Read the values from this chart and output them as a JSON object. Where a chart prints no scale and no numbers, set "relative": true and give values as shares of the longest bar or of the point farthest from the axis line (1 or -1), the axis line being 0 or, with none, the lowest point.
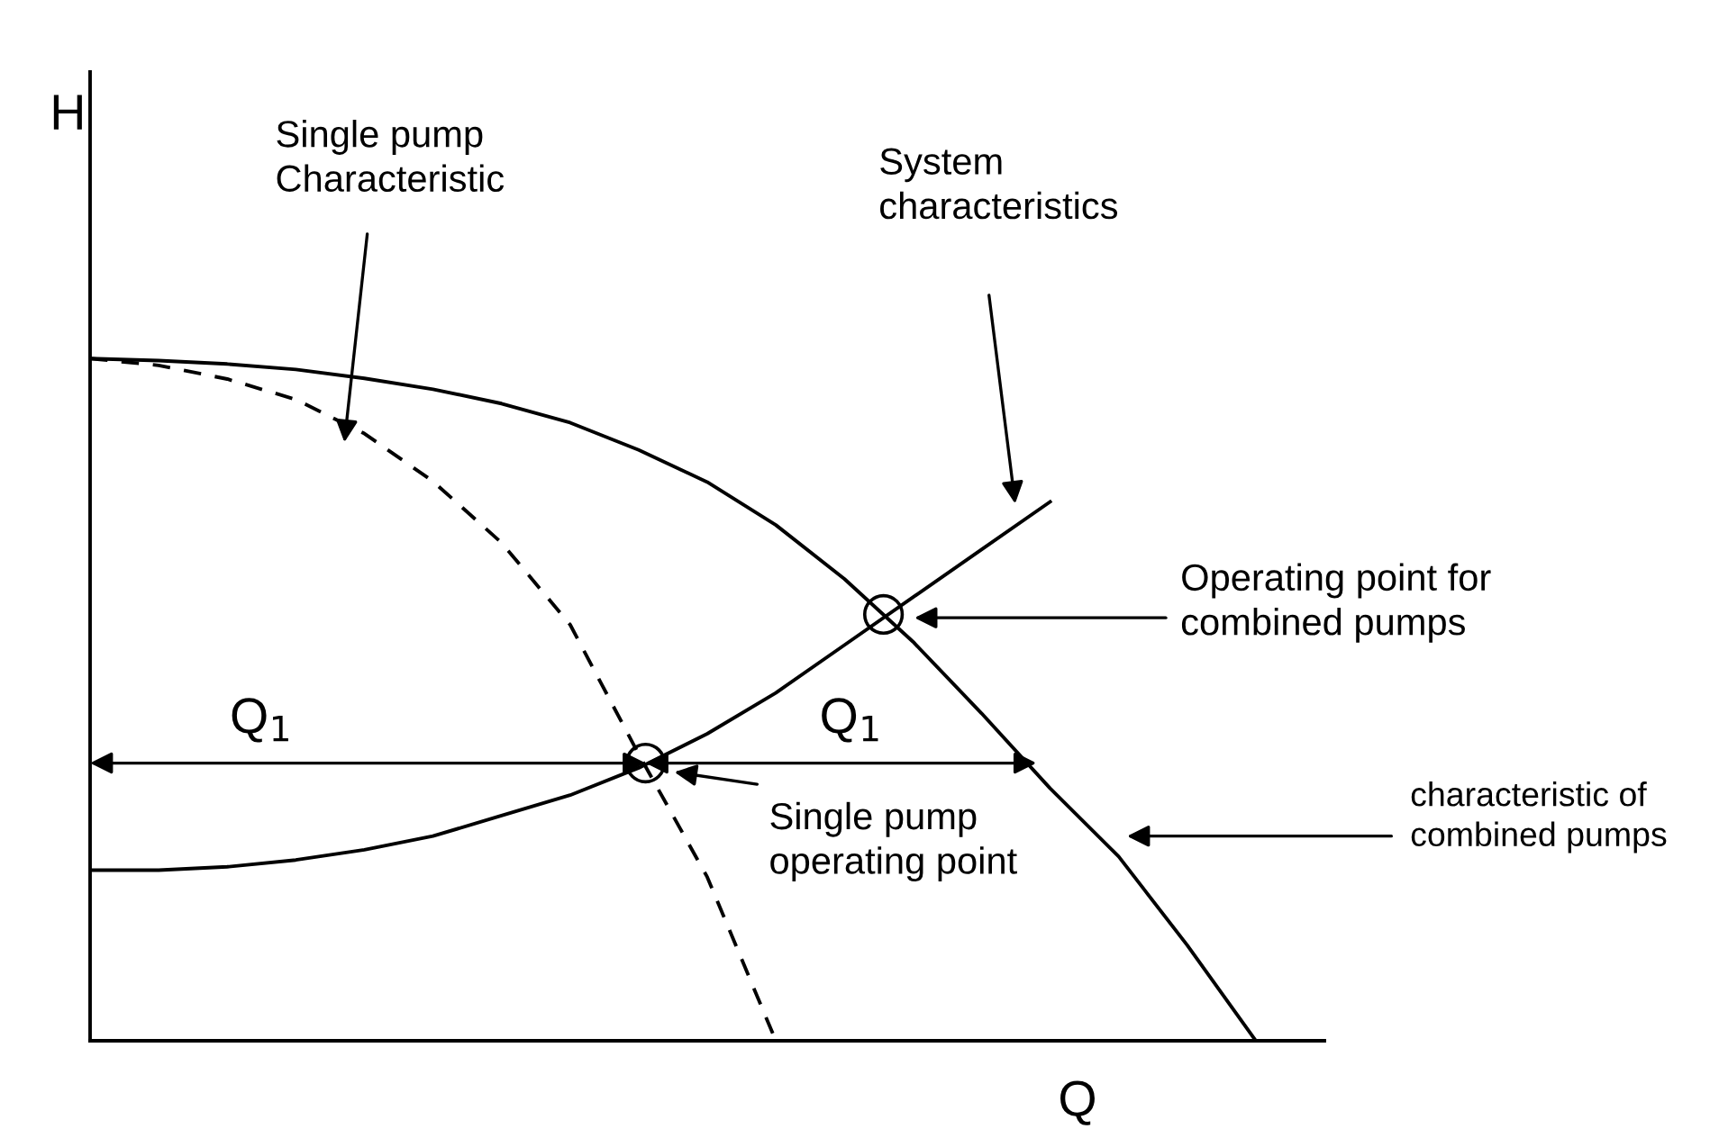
{
  "chart_data": {
    "type": "line",
    "relative": true,
    "xlabel": "Q",
    "ylabel": "H",
    "categories": [
      null,
      null,
      null,
      null,
      null,
      null,
      null,
      null,
      null,
      null,
      null,
      null,
      null,
      null,
      null,
      null,
      null,
      null,
      null
    ],
    "series": [
      {
        "color": "#000000",
        "line_style": "dashed",
        "values": [
          1.0,
          0.99,
          0.97,
          0.94,
          0.89,
          0.82,
          0.73,
          0.61,
          0.42,
          0.24,
          0,
          null,
          null,
          null,
          null,
          null,
          null,
          null,
          null
        ]
      },
      {
        "color": "#000000",
        "line_style": "solid",
        "values": [
          1.0,
          0.997,
          0.992,
          0.984,
          0.971,
          0.955,
          0.934,
          0.906,
          0.866,
          0.819,
          0.756,
          0.677,
          0.585,
          0.48,
          0.37,
          0.27,
          0.14,
          0,
          null
        ]
      },
      {
        "color": "#000000",
        "line_style": "solid",
        "values": [
          0.25,
          0.25,
          0.255,
          0.265,
          0.28,
          0.3,
          0.33,
          0.36,
          0.4,
          0.45,
          0.51,
          0.58,
          0.65,
          0.72,
          0.79,
          null,
          null,
          null,
          null
        ]
      }
    ],
    "marker": "none",
    "grid": false,
    "legend": false,
    "annotations": [
      "Single pump\nCharacteristic",
      "System\ncharacteristics",
      "Operating point for\ncombined pumps",
      "Single pump\noperating point",
      "characteristic of\ncombined pumps",
      "Q$_{1}$",
      "Q$_{1}$"
    ]
  }
}
